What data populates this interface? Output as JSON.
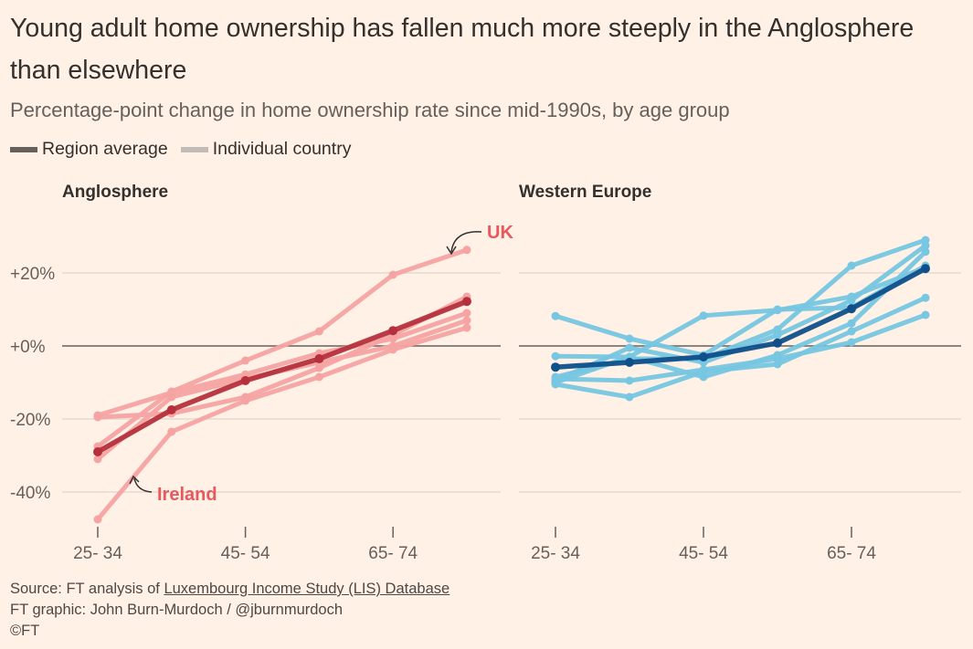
{
  "header": {
    "title": "Young adult home ownership has fallen much more steeply in the Anglosphere than elsewhere",
    "subtitle": "Percentage-point change in home ownership rate since mid-1990s, by age group"
  },
  "legend": {
    "average": "Region average",
    "individual": "Individual country"
  },
  "footer": {
    "source_prefix": "Source: FT analysis of ",
    "source_link": "Luxembourg Income Study (LIS) Database",
    "credit": "FT graphic: John Burn-Murdoch / @jburnmurdoch",
    "copyright": "©FT"
  },
  "colors": {
    "background": "#fff1e5",
    "anglo_individual": "#f5a3a3",
    "anglo_average": "#b5303c",
    "anglo_annotation": "#e8585c",
    "europe_individual": "#77c6e2",
    "europe_average": "#0f4f8a",
    "zero_line": "#66605c",
    "grid": "#e6d9ce"
  },
  "chart_data": [
    {
      "type": "line",
      "panel": "Anglosphere",
      "title": "Anglosphere",
      "x": [
        0,
        1,
        2,
        3,
        4,
        5
      ],
      "x_tick_labels": [
        {
          "x": 0,
          "label": "25- 34"
        },
        {
          "x": 2,
          "label": "45- 54"
        },
        {
          "x": 4,
          "label": "65- 74"
        }
      ],
      "ylim": [
        -50,
        30
      ],
      "y_ticks": [
        20,
        0,
        -20,
        -40
      ],
      "y_tick_labels": [
        "+20%",
        "+0%",
        "-20%",
        "-40%"
      ],
      "grid": true,
      "average": {
        "name": "Region average",
        "values": [
          -29,
          -17.5,
          -9.5,
          -3.5,
          4.2,
          12.2
        ]
      },
      "series": [
        {
          "name": "UK",
          "values": [
            -27.5,
            -12.5,
            -4,
            4,
            19.5,
            26.3
          ]
        },
        {
          "name": "Ireland",
          "values": [
            -47.5,
            -23.5,
            -15,
            -8.5,
            -1,
            5
          ]
        },
        {
          "values": [
            -19,
            -12.8,
            -7.8,
            -2,
            2,
            9
          ]
        },
        {
          "values": [
            -19.5,
            -18.5,
            -14,
            -6,
            3,
            13.5
          ]
        },
        {
          "values": [
            -31,
            -14,
            -9,
            -4.5,
            0,
            7
          ]
        }
      ],
      "annotations": [
        {
          "label": "UK",
          "series": "UK"
        },
        {
          "label": "Ireland",
          "series": "Ireland"
        }
      ]
    },
    {
      "type": "line",
      "panel": "Western Europe",
      "title": "Western Europe",
      "x": [
        0,
        1,
        2,
        3,
        4,
        5
      ],
      "x_tick_labels": [
        {
          "x": 0,
          "label": "25- 34"
        },
        {
          "x": 2,
          "label": "45- 54"
        },
        {
          "x": 4,
          "label": "65- 74"
        }
      ],
      "ylim": [
        -50,
        30
      ],
      "grid": true,
      "average": {
        "name": "Region average",
        "values": [
          -5.8,
          -4.5,
          -3,
          0.8,
          10.2,
          21.2
        ]
      },
      "series": [
        {
          "values": [
            8.2,
            2,
            -2.5,
            10,
            10.5,
            22
          ]
        },
        {
          "values": [
            -2.8,
            -3,
            8.3,
            9.8,
            13.5,
            21.5
          ]
        },
        {
          "values": [
            -8.5,
            -3.5,
            -3.5,
            4.5,
            22,
            29
          ]
        },
        {
          "values": [
            -9.5,
            -0.5,
            -4.5,
            3,
            12.5,
            27.5
          ]
        },
        {
          "values": [
            -10,
            -3,
            -8.5,
            -2.5,
            6.2,
            25.8
          ]
        },
        {
          "values": [
            -10.5,
            -14,
            -7,
            -5,
            4,
            13.2
          ]
        },
        {
          "values": [
            -9,
            -9.5,
            -6.5,
            -3.5,
            1,
            8.5
          ]
        }
      ]
    }
  ]
}
